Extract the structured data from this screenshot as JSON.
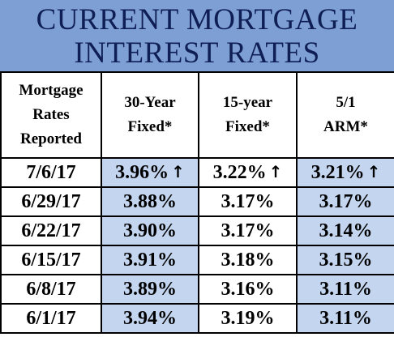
{
  "title": {
    "line1": "CURRENT MORTGAGE",
    "line2": "INTEREST RATES"
  },
  "headers": [
    {
      "line1": "Mortgage",
      "line2": "Rates",
      "line3": "Reported"
    },
    {
      "line1": "30-Year",
      "line2": "Fixed*"
    },
    {
      "line1": "15-year",
      "line2": "Fixed*"
    },
    {
      "line1": "5/1",
      "line2": "ARM*"
    }
  ],
  "rows": [
    {
      "date": "7/6/17",
      "fixed30": "3.96%",
      "fixed15": "3.22%",
      "arm51": "3.21%",
      "arrow": "↑"
    },
    {
      "date": "6/29/17",
      "fixed30": "3.88%",
      "fixed15": "3.17%",
      "arm51": "3.17%"
    },
    {
      "date": "6/22/17",
      "fixed30": "3.90%",
      "fixed15": "3.17%",
      "arm51": "3.14%"
    },
    {
      "date": "6/15/17",
      "fixed30": "3.91%",
      "fixed15": "3.18%",
      "arm51": "3.15%"
    },
    {
      "date": "6/8/17",
      "fixed30": "3.89%",
      "fixed15": "3.16%",
      "arm51": "3.11%"
    },
    {
      "date": "6/1/17",
      "fixed30": "3.94%",
      "fixed15": "3.19%",
      "arm51": "3.11%"
    }
  ],
  "colors": {
    "title_bg": "#7d9fd3",
    "title_text": "#0f1f55",
    "shade": "#c4d5ef"
  }
}
